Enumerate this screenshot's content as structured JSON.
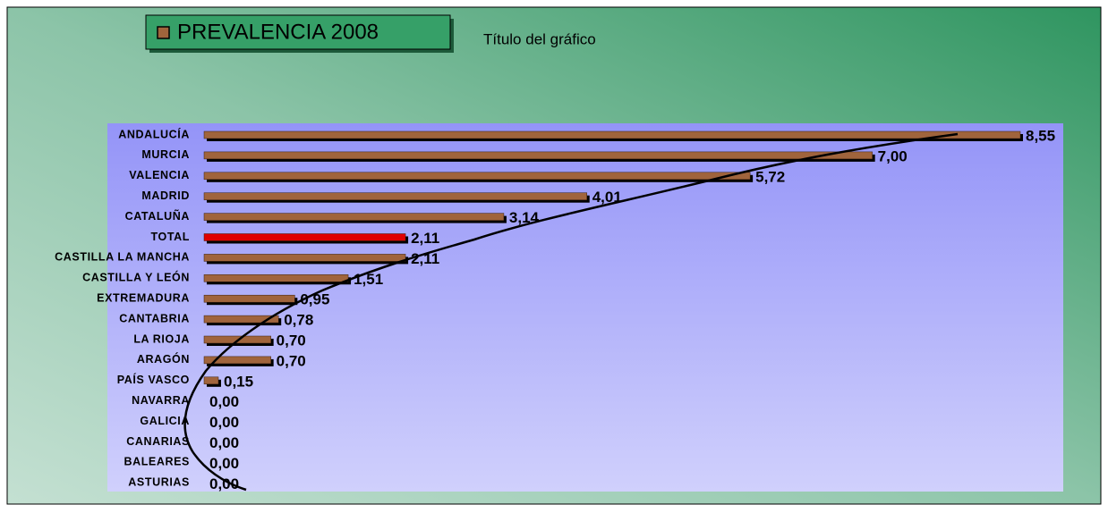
{
  "chart_data": {
    "type": "hbar",
    "title": "Título del gráfico",
    "categories": [
      "ANDALUCÍA",
      "MURCIA",
      "VALENCIA",
      "MADRID",
      "CATALUÑA",
      "TOTAL",
      "CASTILLA LA MANCHA",
      "CASTILLA Y LEÓN",
      "EXTREMADURA",
      "CANTABRIA",
      "LA RIOJA",
      "ARAGÓN",
      "PAÍS VASCO",
      "NAVARRA",
      "GALICIA",
      "CANARIAS",
      "BALEARES",
      "ASTURIAS"
    ],
    "series": [
      {
        "name": "PREVALENCIA 2008",
        "color": "#a0643c",
        "colors": [
          "#a0643c",
          "#a0643c",
          "#a0643c",
          "#a0643c",
          "#a0643c",
          "#e00000",
          "#a0643c",
          "#a0643c",
          "#a0643c",
          "#a0643c",
          "#a0643c",
          "#a0643c",
          "#a0643c",
          "#a0643c",
          "#a0643c",
          "#a0643c",
          "#a0643c",
          "#a0643c"
        ],
        "values": [
          8.55,
          7.0,
          5.72,
          4.01,
          3.14,
          2.11,
          2.11,
          1.51,
          0.95,
          0.78,
          0.7,
          0.7,
          0.15,
          0,
          0,
          0,
          0,
          0
        ],
        "value_labels": [
          "8,55",
          "7,00",
          "5,72",
          "4,01",
          "3,14",
          "2,11",
          "2,11",
          "1,51",
          "0,95",
          "0,78",
          "0,70",
          "0,70",
          "0,15",
          "0,00",
          "0,00",
          "0,00",
          "0,00",
          "0,00"
        ]
      }
    ],
    "xlim": [
      0,
      9
    ]
  }
}
